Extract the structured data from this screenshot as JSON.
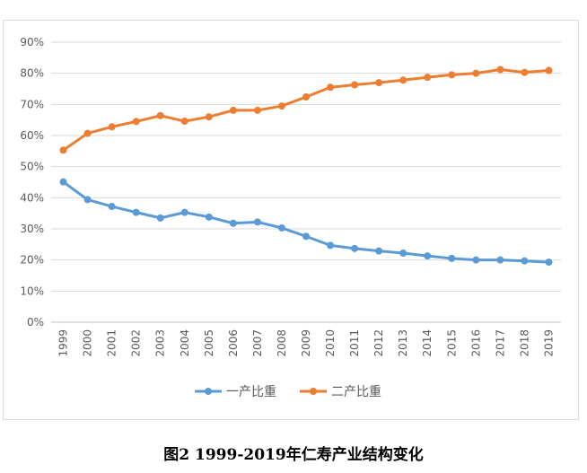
{
  "caption": "图2 1999-2019年仁寿产业结构变化",
  "chart_data": {
    "type": "line",
    "title": "",
    "xlabel": "",
    "ylabel": "",
    "categories": [
      "1999",
      "2000",
      "2001",
      "2002",
      "2003",
      "2004",
      "2005",
      "2006",
      "2007",
      "2008",
      "2009",
      "2010",
      "2011",
      "2012",
      "2013",
      "2014",
      "2015",
      "2016",
      "2017",
      "2018",
      "2019"
    ],
    "ylim": [
      0,
      0.9
    ],
    "y_ticks": [
      "0%",
      "10%",
      "20%",
      "30%",
      "40%",
      "50%",
      "60%",
      "70%",
      "80%",
      "90%"
    ],
    "grid": true,
    "legend_position": "bottom",
    "series": [
      {
        "name": "一产比重",
        "color": "#5b9bd5",
        "values": [
          0.451,
          0.394,
          0.372,
          0.353,
          0.335,
          0.353,
          0.338,
          0.318,
          0.322,
          0.303,
          0.276,
          0.247,
          0.237,
          0.229,
          0.222,
          0.213,
          0.205,
          0.2,
          0.2,
          0.197,
          0.193
        ]
      },
      {
        "name": "二产比重",
        "color": "#ed7d31",
        "values": [
          0.553,
          0.607,
          0.628,
          0.645,
          0.664,
          0.646,
          0.66,
          0.681,
          0.681,
          0.695,
          0.724,
          0.755,
          0.763,
          0.77,
          0.778,
          0.787,
          0.795,
          0.8,
          0.812,
          0.803,
          0.809
        ]
      }
    ]
  }
}
